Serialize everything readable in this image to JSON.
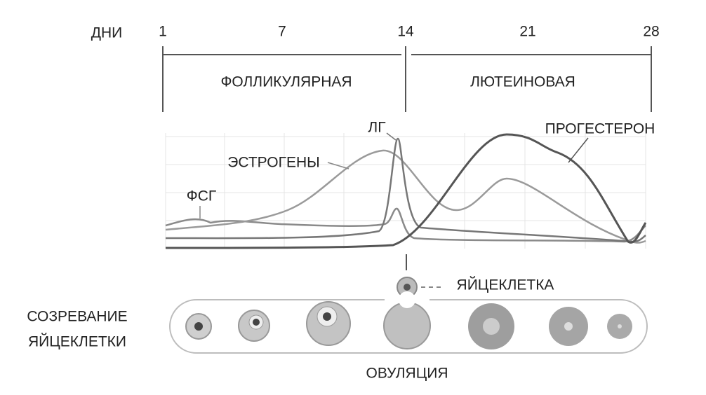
{
  "days_label": "ДНИ",
  "days": [
    "1",
    "7",
    "14",
    "21",
    "28"
  ],
  "phases": [
    "ФОЛЛИКУЛЯРНАЯ",
    "ЛЮТЕИНОВАЯ"
  ],
  "hormones": {
    "lh": "ЛГ",
    "estrogen": "ЭСТРОГЕНЫ",
    "fsh": "ФСГ",
    "progesterone": "ПРОГЕСТЕРОН"
  },
  "egg_label": "ЯЙЦЕКЛЕТКА",
  "maturation": [
    "СОЗРЕВАНИЕ",
    "ЯЙЦЕКЛЕТКИ"
  ],
  "ovulation": "ОВУЛЯЦИЯ"
}
